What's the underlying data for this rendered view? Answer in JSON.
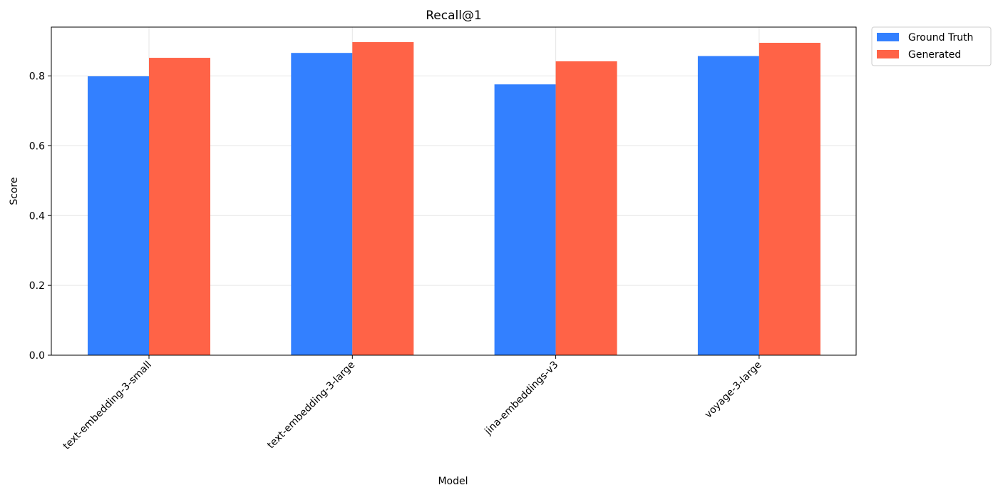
{
  "chart_data": {
    "type": "bar",
    "title": "Recall@1",
    "xlabel": "Model",
    "ylabel": "Score",
    "categories": [
      "text-embedding-3-small",
      "text-embedding-3-large",
      "jina-embeddings-v3",
      "voyage-3-large"
    ],
    "series": [
      {
        "name": "Ground Truth",
        "color": "#3380ff",
        "values": [
          0.799,
          0.866,
          0.776,
          0.857
        ]
      },
      {
        "name": "Generated",
        "color": "#ff6347",
        "values": [
          0.852,
          0.897,
          0.842,
          0.895
        ]
      }
    ],
    "ylim": [
      0,
      0.94
    ],
    "yticks": [
      "0.0",
      "0.2",
      "0.4",
      "0.6",
      "0.8"
    ],
    "ytick_values": [
      0,
      0.2,
      0.4,
      0.6,
      0.8
    ],
    "grid": true,
    "legend_position": "outside-top-right"
  }
}
